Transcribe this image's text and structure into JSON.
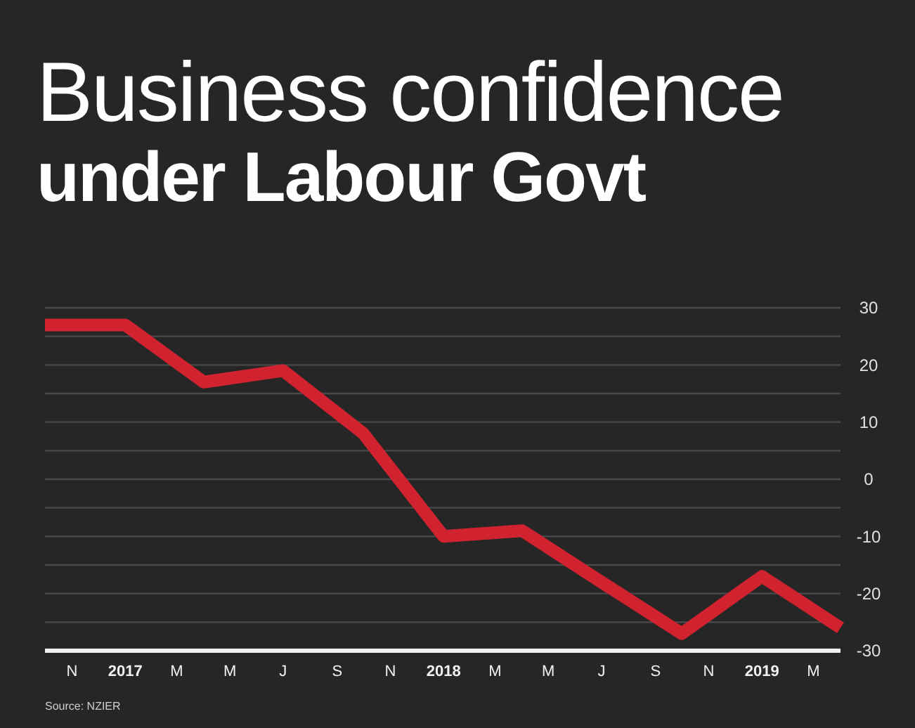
{
  "chart_data": {
    "type": "line",
    "title": "Business confidence",
    "subtitle": "under Labour Govt",
    "x": [
      "2016-10",
      "2017-01",
      "2017-04",
      "2017-07",
      "2017-10",
      "2018-01",
      "2018-04",
      "2018-07",
      "2018-10",
      "2019-01",
      "2019-04"
    ],
    "series": [
      {
        "color": "#d0232f",
        "values": [
          27,
          27,
          17,
          19,
          8,
          -10,
          -9,
          -18,
          -27,
          -17,
          -26
        ]
      }
    ],
    "xlim": [
      "2016-10",
      "2019-04"
    ],
    "xticks": [
      {
        "value": "2016-11",
        "label": "N"
      },
      {
        "value": "2017-01",
        "label": "2017"
      },
      {
        "value": "2017-03",
        "label": "M"
      },
      {
        "value": "2017-05",
        "label": "M"
      },
      {
        "value": "2017-07",
        "label": "J"
      },
      {
        "value": "2017-09",
        "label": "S"
      },
      {
        "value": "2017-11",
        "label": "N"
      },
      {
        "value": "2018-01",
        "label": "2018"
      },
      {
        "value": "2018-03",
        "label": "M"
      },
      {
        "value": "2018-05",
        "label": "M"
      },
      {
        "value": "2018-07",
        "label": "J"
      },
      {
        "value": "2018-09",
        "label": "S"
      },
      {
        "value": "2018-11",
        "label": "N"
      },
      {
        "value": "2019-01",
        "label": "2019"
      },
      {
        "value": "2019-03",
        "label": "M"
      }
    ],
    "ylim": [
      -30,
      30
    ],
    "yticks": [
      30,
      {
        "value": 25,
        "label": null
      },
      20,
      {
        "value": 15,
        "label": null
      },
      10,
      {
        "value": 5,
        "label": null
      },
      0,
      {
        "value": -5,
        "label": null
      },
      -10,
      {
        "value": -15,
        "label": null
      },
      -20,
      {
        "value": -25,
        "label": null
      },
      -30
    ],
    "grid": "y",
    "marker": "none",
    "line_style": "solid",
    "annotations": [
      "Source: NZIER"
    ]
  }
}
